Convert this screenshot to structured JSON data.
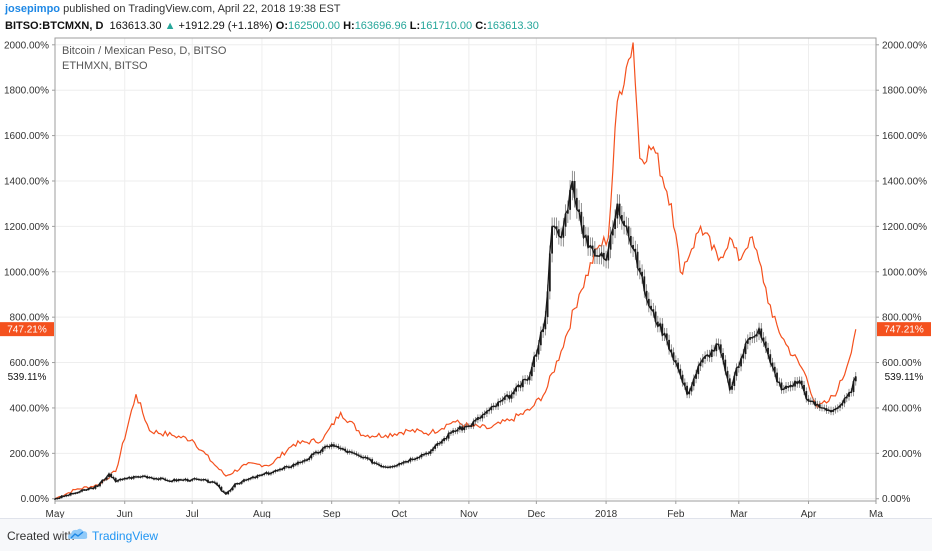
{
  "header": {
    "author": "josepimpo",
    "published": "published on TradingView.com, April 22, 2018 19:38 EST",
    "symbol": "BITSO:BTCMXN, D",
    "last": "163613.30",
    "arrow": "▲",
    "change": "+1912.29 (+1.18%)",
    "o_label": "O:",
    "o_value": "162500.00",
    "h_label": "H:",
    "h_value": "163696.96",
    "l_label": "L:",
    "l_value": "161710.00",
    "c_label": "C:",
    "c_value": "163613.30"
  },
  "legend": {
    "main": "Bitcoin / Mexican Peso, D, BITSO",
    "compare": "ETHMXN, BITSO"
  },
  "footer": {
    "created_with": "Created with",
    "brand": "TradingView"
  },
  "colors": {
    "btc": "#1a1a1a",
    "eth": "#f4511e",
    "badge_eth": "#f4511e",
    "grid": "#eeeeee",
    "brand": "#2196f3"
  },
  "chart_data": {
    "type": "line",
    "title": "Bitcoin / Mexican Peso, D, BITSO",
    "y_axis": {
      "ticks": [
        "0.00%",
        "200.00%",
        "400.00%",
        "600.00%",
        "800.00%",
        "1000.00%",
        "1200.00%",
        "1400.00%",
        "1600.00%",
        "1800.00%",
        "2000.00%"
      ],
      "ylim": [
        -10,
        2030
      ],
      "unit": "%"
    },
    "x_axis": {
      "ticks": [
        "May",
        "Jun",
        "Jul",
        "Aug",
        "Sep",
        "Oct",
        "Nov",
        "Dec",
        "2018",
        "Feb",
        "Mar",
        "Apr",
        "Ma"
      ],
      "range": [
        "2017-05-01",
        "2018-05-01"
      ]
    },
    "last_values": {
      "eth": "747.21%",
      "btc": "539.11%"
    },
    "series": [
      {
        "name": "Bitcoin / Mexican Peso, D, BITSO",
        "style": "candles",
        "x": [
          "2017-05-01",
          "2017-05-10",
          "2017-05-20",
          "2017-05-25",
          "2017-05-28",
          "2017-06-01",
          "2017-06-10",
          "2017-06-20",
          "2017-07-01",
          "2017-07-10",
          "2017-07-16",
          "2017-07-20",
          "2017-08-01",
          "2017-08-10",
          "2017-08-20",
          "2017-09-01",
          "2017-09-05",
          "2017-09-15",
          "2017-09-25",
          "2017-10-01",
          "2017-10-15",
          "2017-10-25",
          "2017-11-01",
          "2017-11-10",
          "2017-11-20",
          "2017-11-28",
          "2017-12-05",
          "2017-12-08",
          "2017-12-12",
          "2017-12-17",
          "2017-12-22",
          "2017-12-26",
          "2018-01-01",
          "2018-01-06",
          "2018-01-10",
          "2018-01-16",
          "2018-01-20",
          "2018-01-28",
          "2018-02-01",
          "2018-02-06",
          "2018-02-12",
          "2018-02-20",
          "2018-02-25",
          "2018-03-05",
          "2018-03-10",
          "2018-03-15",
          "2018-03-20",
          "2018-03-28",
          "2018-04-01",
          "2018-04-07",
          "2018-04-12",
          "2018-04-16",
          "2018-04-20",
          "2018-04-22"
        ],
        "y": [
          0,
          25,
          55,
          110,
          75,
          90,
          100,
          80,
          85,
          75,
          20,
          65,
          105,
          130,
          170,
          240,
          220,
          180,
          140,
          155,
          210,
          300,
          320,
          390,
          460,
          540,
          800,
          1200,
          1150,
          1400,
          1150,
          1100,
          1050,
          1300,
          1200,
          1000,
          850,
          700,
          600,
          460,
          600,
          680,
          480,
          700,
          750,
          600,
          480,
          520,
          430,
          400,
          390,
          420,
          470,
          539
        ]
      },
      {
        "name": "ETHMXN, BITSO",
        "style": "line",
        "x": [
          "2017-05-01",
          "2017-05-10",
          "2017-05-20",
          "2017-05-28",
          "2017-06-06",
          "2017-06-12",
          "2017-06-22",
          "2017-07-01",
          "2017-07-10",
          "2017-07-16",
          "2017-07-25",
          "2017-08-05",
          "2017-08-15",
          "2017-08-28",
          "2017-09-05",
          "2017-09-15",
          "2017-09-25",
          "2017-10-05",
          "2017-10-15",
          "2017-10-25",
          "2017-11-01",
          "2017-11-10",
          "2017-11-20",
          "2017-11-28",
          "2017-12-05",
          "2017-12-12",
          "2017-12-20",
          "2017-12-28",
          "2018-01-02",
          "2018-01-06",
          "2018-01-10",
          "2018-01-13",
          "2018-01-16",
          "2018-01-22",
          "2018-01-30",
          "2018-02-03",
          "2018-02-08",
          "2018-02-12",
          "2018-02-20",
          "2018-02-25",
          "2018-03-01",
          "2018-03-06",
          "2018-03-10",
          "2018-03-16",
          "2018-03-22",
          "2018-03-30",
          "2018-04-05",
          "2018-04-10",
          "2018-04-14",
          "2018-04-18",
          "2018-04-22"
        ],
        "y": [
          0,
          40,
          60,
          120,
          460,
          300,
          280,
          260,
          160,
          100,
          150,
          150,
          240,
          260,
          380,
          280,
          280,
          300,
          290,
          340,
          320,
          310,
          350,
          390,
          470,
          650,
          900,
          1100,
          1150,
          1750,
          1900,
          2010,
          1500,
          1550,
          1300,
          1000,
          1100,
          1200,
          1050,
          1150,
          1050,
          1150,
          1050,
          800,
          680,
          560,
          400,
          430,
          480,
          580,
          747
        ]
      }
    ]
  }
}
